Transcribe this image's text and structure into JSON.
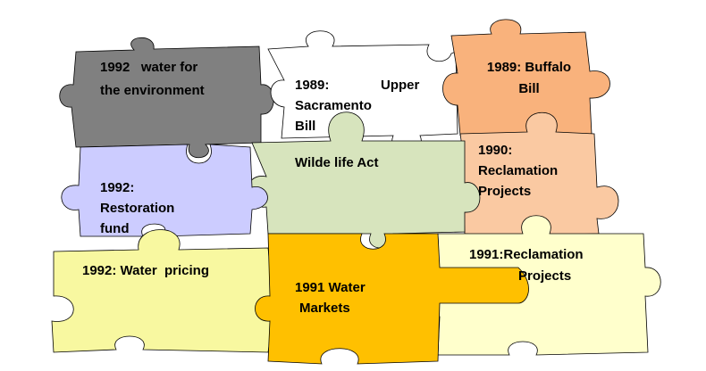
{
  "pieces": [
    {
      "lines": [
        "1992   water for",
        "the environment"
      ]
    },
    {
      "lines": [
        "1989:",
        "Upper",
        "Sacramento",
        "Bill"
      ]
    },
    {
      "lines": [
        "1989: Buffalo",
        "Bill"
      ]
    },
    {
      "lines": [
        "1990:",
        "Reclamation",
        "Projects"
      ]
    },
    {
      "lines": [
        "Wilde life Act"
      ]
    },
    {
      "lines": [
        "1992:",
        "Restoration",
        "fund"
      ]
    },
    {
      "lines": [
        "1992: Water  pricing"
      ]
    },
    {
      "lines": [
        "1991:Reclamation",
        "Projects"
      ]
    },
    {
      "lines": [
        "1991 Water",
        "Markets"
      ]
    }
  ]
}
